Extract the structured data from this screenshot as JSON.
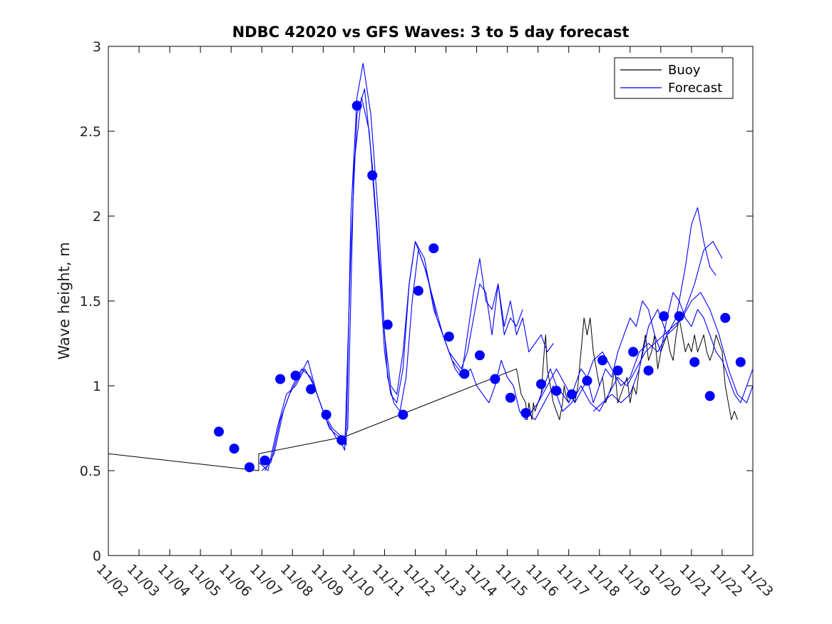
{
  "chart_data": {
    "type": "line",
    "title": "NDBC 42020 vs GFS Waves: 3 to 5 day forecast",
    "xlabel": "",
    "ylabel": "Wave height, m",
    "xlim": [
      0,
      21
    ],
    "ylim": [
      0,
      3
    ],
    "x_ticks": [
      0,
      1,
      2,
      3,
      4,
      5,
      6,
      7,
      8,
      9,
      10,
      11,
      12,
      13,
      14,
      15,
      16,
      17,
      18,
      19,
      20,
      21
    ],
    "x_tick_labels": [
      "11/02",
      "11/03",
      "11/04",
      "11/05",
      "11/06",
      "11/07",
      "11/08",
      "11/09",
      "11/10",
      "11/11",
      "11/12",
      "11/13",
      "11/14",
      "11/15",
      "11/16",
      "11/17",
      "11/18",
      "11/19",
      "11/20",
      "11/21",
      "11/22",
      "11/23"
    ],
    "y_ticks": [
      0,
      0.5,
      1,
      1.5,
      2,
      2.5,
      3
    ],
    "y_tick_labels": [
      "0",
      "0.5",
      "1",
      "1.5",
      "2",
      "2.5",
      "3"
    ],
    "legend": {
      "position": "top-right",
      "entries": [
        {
          "label": "Buoy",
          "color": "#000000"
        },
        {
          "label": "Forecast",
          "color": "#0000ff"
        }
      ]
    },
    "series": [
      {
        "name": "Buoy",
        "color": "#000000",
        "x": [
          0,
          4.9,
          4.9,
          7.7,
          7.7,
          13.3,
          13.45,
          13.6,
          13.65,
          13.7,
          13.75,
          13.8,
          13.85,
          13.9,
          14.0,
          14.1,
          14.2,
          14.25,
          14.3,
          14.4,
          14.5,
          14.6,
          14.7,
          14.8,
          14.85,
          14.9,
          15.0,
          15.1,
          15.2,
          15.3,
          15.4,
          15.5,
          15.6,
          15.7,
          15.8,
          15.9,
          16.0,
          16.1,
          16.2,
          16.3,
          16.4,
          16.5,
          16.6,
          16.7,
          16.8,
          16.9,
          17.0,
          17.1,
          17.2,
          17.3,
          17.4,
          17.5,
          17.6,
          17.7,
          17.8,
          17.9,
          18.0,
          18.1,
          18.2,
          18.3,
          18.4,
          18.5,
          18.6,
          18.7,
          18.8,
          18.9,
          19.0,
          19.1,
          19.2,
          19.3,
          19.4,
          19.5,
          19.6,
          19.7,
          19.8,
          19.9,
          20.0,
          20.1,
          20.2,
          20.3,
          20.4,
          20.5
        ],
        "y": [
          0.6,
          0.5,
          0.6,
          0.7,
          0.7,
          1.1,
          0.95,
          0.9,
          0.8,
          0.9,
          0.85,
          0.8,
          0.9,
          0.85,
          0.9,
          0.95,
          1.2,
          1.3,
          1.1,
          1.0,
          0.9,
          0.85,
          0.8,
          0.9,
          1.0,
          0.95,
          0.9,
          0.95,
          0.9,
          1.0,
          1.2,
          1.4,
          1.3,
          1.4,
          1.2,
          1.1,
          1.0,
          1.05,
          0.9,
          0.95,
          1.0,
          1.1,
          0.9,
          0.95,
          1.0,
          1.05,
          0.9,
          1.0,
          0.95,
          1.1,
          1.2,
          1.3,
          1.15,
          1.2,
          1.3,
          1.1,
          1.2,
          1.25,
          1.3,
          1.2,
          1.15,
          1.3,
          1.4,
          1.3,
          1.2,
          1.25,
          1.2,
          1.3,
          1.2,
          1.25,
          1.3,
          1.2,
          1.15,
          1.2,
          1.3,
          1.25,
          1.2,
          1.0,
          0.9,
          0.8,
          0.85,
          0.8
        ]
      },
      {
        "name": "Forecast run 1",
        "color": "#0000ff",
        "x": [
          4.9,
          5.2,
          5.5,
          5.8,
          6.1,
          6.4,
          6.7,
          7.0,
          7.3,
          7.6,
          7.75,
          7.9,
          8.1,
          8.3,
          8.55,
          8.8,
          9.0,
          9.2,
          9.4,
          9.6,
          9.8,
          10.0,
          10.3,
          10.6,
          10.9,
          11.1,
          11.3,
          11.5,
          11.7,
          11.9,
          12.1,
          12.3,
          12.5,
          12.7,
          12.9,
          13.1,
          13.3,
          13.5
        ],
        "y": [
          0.55,
          0.5,
          0.75,
          0.95,
          1.0,
          1.1,
          1.0,
          0.85,
          0.75,
          0.7,
          0.65,
          2.0,
          2.7,
          2.9,
          2.6,
          2.0,
          1.3,
          1.0,
          0.95,
          1.2,
          1.6,
          1.85,
          1.75,
          1.45,
          1.3,
          1.2,
          1.1,
          1.05,
          1.3,
          1.55,
          1.75,
          1.5,
          1.45,
          1.6,
          1.3,
          1.4,
          1.35,
          1.45
        ]
      },
      {
        "name": "Forecast run 2",
        "color": "#0000ff",
        "x": [
          5.0,
          5.3,
          5.6,
          5.9,
          6.2,
          6.5,
          6.8,
          7.1,
          7.4,
          7.6,
          7.8,
          8.0,
          8.25,
          8.5,
          8.75,
          9.0,
          9.2,
          9.4,
          9.6,
          9.8,
          10.0,
          10.3,
          10.6,
          10.9,
          11.1,
          11.3,
          11.5,
          11.7,
          11.9,
          12.1,
          12.3,
          12.5,
          12.7,
          12.9,
          13.1,
          13.3,
          13.5,
          13.7,
          13.9,
          14.1,
          14.3,
          14.5
        ],
        "y": [
          0.5,
          0.55,
          0.8,
          0.95,
          1.05,
          1.15,
          0.95,
          0.8,
          0.7,
          0.65,
          0.75,
          2.3,
          2.7,
          2.5,
          1.9,
          1.2,
          0.95,
          0.9,
          1.1,
          1.6,
          1.85,
          1.7,
          1.5,
          1.3,
          1.2,
          1.15,
          1.1,
          1.2,
          1.4,
          1.6,
          1.55,
          1.3,
          1.6,
          1.35,
          1.5,
          1.3,
          1.4,
          1.2,
          1.25,
          1.3,
          1.2,
          1.25
        ]
      },
      {
        "name": "Forecast run 3",
        "color": "#0000ff",
        "x": [
          5.1,
          5.4,
          5.7,
          6.0,
          6.3,
          6.6,
          6.9,
          7.2,
          7.5,
          7.7,
          7.9,
          8.1,
          8.35,
          8.6,
          8.85,
          9.1,
          9.3,
          9.5,
          9.7,
          9.9,
          10.1,
          10.4,
          10.7,
          11.0,
          11.2,
          11.4,
          11.6,
          11.8,
          12.0,
          12.2,
          12.4,
          12.6,
          12.8,
          13.0,
          13.2,
          13.4,
          13.6,
          13.8,
          14.0,
          14.2,
          14.4,
          14.6,
          14.8,
          15.0,
          15.2,
          15.4,
          15.6,
          15.8,
          16.0,
          16.2,
          16.4,
          16.6,
          16.8,
          17.0,
          17.2,
          17.4,
          17.6,
          17.8,
          18.0,
          18.2,
          18.4,
          18.6,
          18.8,
          19.0,
          19.2,
          19.4,
          19.6,
          19.8,
          20.0,
          20.2,
          20.4,
          20.6,
          20.8,
          21.0
        ],
        "y": [
          0.5,
          0.6,
          0.85,
          1.0,
          1.1,
          1.05,
          0.9,
          0.75,
          0.7,
          0.62,
          1.8,
          2.6,
          2.75,
          2.3,
          1.7,
          1.05,
          0.9,
          0.85,
          1.05,
          1.5,
          1.8,
          1.65,
          1.4,
          1.25,
          1.15,
          1.1,
          1.05,
          1.1,
          1.0,
          0.95,
          0.9,
          1.0,
          1.15,
          1.05,
          1.0,
          0.85,
          0.8,
          0.85,
          0.9,
          1.0,
          1.1,
          1.0,
          0.95,
          0.9,
          1.0,
          1.1,
          1.05,
          0.9,
          1.0,
          1.1,
          1.05,
          1.2,
          1.3,
          1.4,
          1.35,
          1.5,
          1.45,
          1.3,
          1.2,
          1.4,
          1.55,
          1.5,
          1.4,
          1.35,
          1.45,
          1.4,
          1.3,
          1.2,
          1.15,
          1.05,
          0.95,
          0.9,
          1.0,
          1.1
        ]
      },
      {
        "name": "Forecast run 4",
        "color": "#0000ff",
        "x": [
          13.6,
          13.9,
          14.2,
          14.5,
          14.8,
          15.1,
          15.4,
          15.7,
          16.0,
          16.3,
          16.6,
          16.9,
          17.2,
          17.5,
          17.8,
          18.1,
          18.4,
          18.7,
          19.0,
          19.3,
          19.6,
          19.9,
          20.2,
          20.5,
          20.8,
          21.0
        ],
        "y": [
          0.85,
          0.8,
          0.9,
          1.0,
          0.85,
          0.9,
          1.0,
          0.9,
          0.85,
          0.95,
          1.05,
          1.0,
          1.1,
          1.2,
          1.25,
          1.3,
          1.35,
          1.4,
          1.5,
          1.55,
          1.45,
          1.3,
          1.1,
          0.95,
          0.9,
          1.0
        ]
      },
      {
        "name": "Forecast run 5",
        "color": "#0000ff",
        "x": [
          15.8,
          16.1,
          16.4,
          16.7,
          17.0,
          17.3,
          17.6,
          17.9,
          18.2,
          18.5,
          18.8,
          19.0,
          19.2,
          19.4,
          19.6,
          19.8
        ],
        "y": [
          0.85,
          0.9,
          0.95,
          0.9,
          0.95,
          1.1,
          1.35,
          1.45,
          1.3,
          1.4,
          1.7,
          1.95,
          2.05,
          1.85,
          1.7,
          1.65
        ]
      },
      {
        "name": "Forecast run 6",
        "color": "#0000ff",
        "x": [
          14.0,
          14.3,
          14.6,
          14.9,
          15.2,
          15.5,
          15.8,
          16.1,
          16.4,
          16.7,
          17.0,
          17.3,
          17.6,
          17.9,
          18.2,
          18.5,
          18.8,
          19.1,
          19.4,
          19.7,
          20.0
        ],
        "y": [
          0.9,
          1.0,
          1.1,
          1.0,
          0.9,
          1.0,
          1.15,
          1.2,
          1.1,
          1.0,
          1.05,
          1.2,
          1.25,
          1.2,
          1.3,
          1.35,
          1.45,
          1.6,
          1.8,
          1.85,
          1.75
        ]
      }
    ],
    "markers": {
      "name": "Forecast points",
      "color": "#0000ff",
      "x": [
        3.6,
        4.1,
        4.6,
        5.1,
        5.6,
        6.1,
        6.6,
        7.1,
        7.6,
        8.1,
        8.6,
        9.1,
        9.6,
        10.1,
        10.6,
        11.1,
        11.6,
        12.1,
        12.6,
        13.1,
        13.6,
        14.1,
        14.6,
        15.1,
        15.6,
        16.1,
        16.6,
        17.1,
        17.6,
        18.1,
        18.6,
        19.1,
        19.6,
        20.1,
        20.6
      ],
      "y": [
        0.73,
        0.63,
        0.52,
        0.56,
        1.04,
        1.06,
        0.98,
        0.83,
        0.68,
        2.65,
        2.24,
        1.36,
        0.83,
        1.56,
        1.81,
        1.29,
        1.07,
        1.18,
        1.04,
        0.93,
        0.84,
        1.01,
        0.97,
        0.95,
        1.03,
        1.15,
        1.09,
        1.2,
        1.09,
        1.41,
        1.41,
        1.14,
        0.94,
        1.4,
        1.14
      ]
    }
  }
}
